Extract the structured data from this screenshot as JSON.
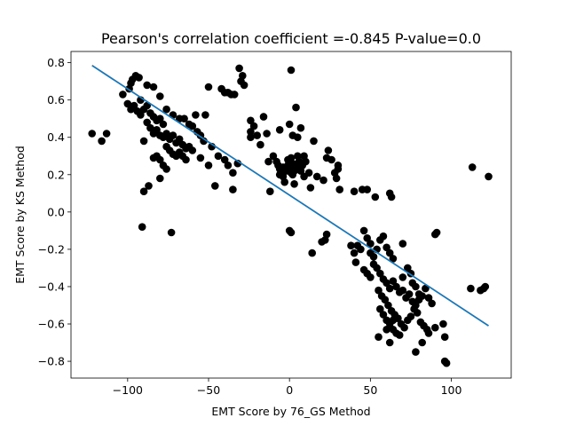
{
  "chart_data": {
    "type": "scatter",
    "title": "Pearson's correlation coefficient =-0.845 P-value=0.0",
    "xlabel": "EMT Score by 76_GS Method",
    "ylabel": "EMT Score by KS Method",
    "xlim": [
      -135,
      137
    ],
    "ylim": [
      -0.89,
      0.86
    ],
    "xticks": [
      -100,
      -50,
      0,
      50,
      100
    ],
    "xtick_labels": [
      "−100",
      "−50",
      "0",
      "50",
      "100"
    ],
    "yticks": [
      -0.8,
      -0.6,
      -0.4,
      -0.2,
      0.0,
      0.2,
      0.4,
      0.6,
      0.8
    ],
    "ytick_labels": [
      "−0.8",
      "−0.6",
      "−0.4",
      "−0.2",
      "0.0",
      "0.2",
      "0.4",
      "0.6",
      "0.8"
    ],
    "grid": false,
    "colors": {
      "points": "#000000",
      "fit_line": "#1f77b4"
    },
    "fit_line": {
      "x": [
        -122,
        123
      ],
      "y": [
        0.785,
        -0.61
      ]
    },
    "series": [
      {
        "points": [
          [
            -122,
            0.42
          ],
          [
            -116,
            0.38
          ],
          [
            -113,
            0.42
          ],
          [
            -103,
            0.63
          ],
          [
            -99,
            0.66
          ],
          [
            -98,
            0.69
          ],
          [
            -97,
            0.71
          ],
          [
            -95,
            0.73
          ],
          [
            -93,
            0.72
          ],
          [
            -92,
            0.6
          ],
          [
            -100,
            0.58
          ],
          [
            -98,
            0.55
          ],
          [
            -96,
            0.57
          ],
          [
            -94,
            0.54
          ],
          [
            -92,
            0.52
          ],
          [
            -90,
            0.55
          ],
          [
            -88,
            0.57
          ],
          [
            -86,
            0.53
          ],
          [
            -84,
            0.51
          ],
          [
            -82,
            0.49
          ],
          [
            -80,
            0.5
          ],
          [
            -78,
            0.47
          ],
          [
            -88,
            0.48
          ],
          [
            -86,
            0.45
          ],
          [
            -84,
            0.42
          ],
          [
            -82,
            0.44
          ],
          [
            -80,
            0.41
          ],
          [
            -78,
            0.4
          ],
          [
            -76,
            0.42
          ],
          [
            -74,
            0.39
          ],
          [
            -72,
            0.41
          ],
          [
            -70,
            0.37
          ],
          [
            -68,
            0.39
          ],
          [
            -66,
            0.36
          ],
          [
            -64,
            0.34
          ],
          [
            -62,
            0.35
          ],
          [
            -60,
            0.33
          ],
          [
            -76,
            0.35
          ],
          [
            -74,
            0.33
          ],
          [
            -72,
            0.31
          ],
          [
            -70,
            0.3
          ],
          [
            -68,
            0.32
          ],
          [
            -66,
            0.3
          ],
          [
            -64,
            0.28
          ],
          [
            -84,
            0.29
          ],
          [
            -82,
            0.3
          ],
          [
            -80,
            0.28
          ],
          [
            -78,
            0.25
          ],
          [
            -76,
            0.23
          ],
          [
            -88,
            0.68
          ],
          [
            -84,
            0.67
          ],
          [
            -80,
            0.62
          ],
          [
            -76,
            0.55
          ],
          [
            -72,
            0.52
          ],
          [
            -68,
            0.5
          ],
          [
            -65,
            0.5
          ],
          [
            -62,
            0.47
          ],
          [
            -60,
            0.46
          ],
          [
            -57,
            0.43
          ],
          [
            -55,
            0.41
          ],
          [
            -53,
            0.38
          ],
          [
            -90,
            0.38
          ],
          [
            -87,
            0.14
          ],
          [
            -90,
            0.11
          ],
          [
            -91,
            -0.08
          ],
          [
            -80,
            0.18
          ],
          [
            -73,
            -0.11
          ],
          [
            -55,
            0.29
          ],
          [
            -50,
            0.25
          ],
          [
            -48,
            0.35
          ],
          [
            -46,
            0.14
          ],
          [
            -44,
            0.3
          ],
          [
            -40,
            0.28
          ],
          [
            -38,
            0.25
          ],
          [
            -35,
            0.21
          ],
          [
            -35,
            0.12
          ],
          [
            -31,
            0.77
          ],
          [
            -29,
            0.73
          ],
          [
            -28,
            0.68
          ],
          [
            -50,
            0.67
          ],
          [
            -42,
            0.66
          ],
          [
            -40,
            0.64
          ],
          [
            -38,
            0.64
          ],
          [
            -36,
            0.63
          ],
          [
            -34,
            0.63
          ],
          [
            -30,
            0.7
          ],
          [
            -52,
            0.52
          ],
          [
            -58,
            0.52
          ],
          [
            -32,
            0.26
          ],
          [
            -24,
            0.49
          ],
          [
            -22,
            0.46
          ],
          [
            -20,
            0.41
          ],
          [
            -24,
            0.43
          ],
          [
            -24,
            0.4
          ],
          [
            -18,
            0.36
          ],
          [
            -16,
            0.51
          ],
          [
            -14,
            0.42
          ],
          [
            -13,
            0.27
          ],
          [
            -12,
            0.11
          ],
          [
            -10,
            0.3
          ],
          [
            -8,
            0.27
          ],
          [
            -6,
            0.2
          ],
          [
            -4,
            0.24
          ],
          [
            -3,
            0.16
          ],
          [
            -2,
            0.22
          ],
          [
            -1,
            0.28
          ],
          [
            0,
            0.24
          ],
          [
            1,
            0.29
          ],
          [
            2,
            0.26
          ],
          [
            3,
            0.22
          ],
          [
            4,
            0.24
          ],
          [
            5,
            0.3
          ],
          [
            6,
            0.27
          ],
          [
            7,
            0.22
          ],
          [
            8,
            0.25
          ],
          [
            9,
            0.19
          ],
          [
            -2,
            0.23
          ],
          [
            -1,
            0.25
          ],
          [
            0,
            0.27
          ],
          [
            1,
            0.21
          ],
          [
            2,
            0.2
          ],
          [
            3,
            0.15
          ],
          [
            -4,
            0.19
          ],
          [
            -5,
            0.21
          ],
          [
            -6,
            0.23
          ],
          [
            -7,
            0.25
          ],
          [
            -6,
            0.44
          ],
          [
            0,
            0.47
          ],
          [
            2,
            0.41
          ],
          [
            5,
            0.4
          ],
          [
            4,
            0.56
          ],
          [
            1,
            0.76
          ],
          [
            7,
            0.45
          ],
          [
            9,
            0.3
          ],
          [
            10,
            0.27
          ],
          [
            12,
            0.21
          ],
          [
            13,
            0.13
          ],
          [
            15,
            0.38
          ],
          [
            17,
            0.19
          ],
          [
            21,
            0.17
          ],
          [
            23,
            0.29
          ],
          [
            24,
            0.33
          ],
          [
            26,
            0.28
          ],
          [
            28,
            0.21
          ],
          [
            30,
            0.25
          ],
          [
            30,
            0.23
          ],
          [
            31,
            0.12
          ],
          [
            29,
            0.18
          ],
          [
            0,
            -0.1
          ],
          [
            1,
            -0.11
          ],
          [
            14,
            -0.22
          ],
          [
            20,
            -0.16
          ],
          [
            22,
            -0.15
          ],
          [
            23,
            -0.12
          ],
          [
            38,
            -0.18
          ],
          [
            40,
            -0.22
          ],
          [
            42,
            -0.18
          ],
          [
            41,
            -0.27
          ],
          [
            44,
            -0.2
          ],
          [
            46,
            -0.1
          ],
          [
            48,
            -0.14
          ],
          [
            50,
            -0.17
          ],
          [
            50,
            -0.22
          ],
          [
            52,
            -0.24
          ],
          [
            54,
            -0.2
          ],
          [
            56,
            -0.15
          ],
          [
            58,
            -0.13
          ],
          [
            60,
            -0.19
          ],
          [
            62,
            -0.22
          ],
          [
            64,
            -0.25
          ],
          [
            46,
            -0.31
          ],
          [
            48,
            -0.33
          ],
          [
            50,
            -0.35
          ],
          [
            52,
            -0.28
          ],
          [
            54,
            -0.3
          ],
          [
            56,
            -0.33
          ],
          [
            58,
            -0.36
          ],
          [
            60,
            -0.38
          ],
          [
            62,
            -0.41
          ],
          [
            64,
            -0.37
          ],
          [
            66,
            -0.4
          ],
          [
            68,
            -0.43
          ],
          [
            70,
            -0.42
          ],
          [
            72,
            -0.46
          ],
          [
            74,
            -0.44
          ],
          [
            76,
            -0.48
          ],
          [
            78,
            -0.5
          ],
          [
            80,
            -0.47
          ],
          [
            82,
            -0.45
          ],
          [
            84,
            -0.41
          ],
          [
            86,
            -0.46
          ],
          [
            88,
            -0.49
          ],
          [
            55,
            -0.42
          ],
          [
            57,
            -0.45
          ],
          [
            59,
            -0.47
          ],
          [
            61,
            -0.5
          ],
          [
            63,
            -0.53
          ],
          [
            65,
            -0.55
          ],
          [
            67,
            -0.57
          ],
          [
            69,
            -0.6
          ],
          [
            71,
            -0.62
          ],
          [
            73,
            -0.58
          ],
          [
            75,
            -0.56
          ],
          [
            77,
            -0.52
          ],
          [
            79,
            -0.54
          ],
          [
            81,
            -0.59
          ],
          [
            83,
            -0.61
          ],
          [
            85,
            -0.63
          ],
          [
            56,
            -0.52
          ],
          [
            58,
            -0.55
          ],
          [
            60,
            -0.58
          ],
          [
            62,
            -0.6
          ],
          [
            64,
            -0.63
          ],
          [
            66,
            -0.65
          ],
          [
            68,
            -0.66
          ],
          [
            55,
            -0.67
          ],
          [
            60,
            -0.63
          ],
          [
            62,
            -0.7
          ],
          [
            64,
            -0.58
          ],
          [
            78,
            -0.75
          ],
          [
            82,
            -0.7
          ],
          [
            86,
            -0.65
          ],
          [
            90,
            -0.62
          ],
          [
            95,
            -0.6
          ],
          [
            96,
            -0.67
          ],
          [
            96,
            -0.8
          ],
          [
            97,
            -0.81
          ],
          [
            70,
            -0.17
          ],
          [
            70,
            -0.35
          ],
          [
            73,
            -0.3
          ],
          [
            75,
            -0.33
          ],
          [
            76,
            -0.38
          ],
          [
            78,
            -0.4
          ],
          [
            80,
            -0.44
          ],
          [
            90,
            -0.12
          ],
          [
            91,
            -0.11
          ],
          [
            62,
            0.1
          ],
          [
            63,
            0.08
          ],
          [
            48,
            0.12
          ],
          [
            45,
            0.12
          ],
          [
            40,
            0.11
          ],
          [
            53,
            0.08
          ],
          [
            113,
            0.24
          ],
          [
            123,
            0.19
          ],
          [
            112,
            -0.41
          ],
          [
            118,
            -0.42
          ],
          [
            120,
            -0.41
          ],
          [
            121,
            -0.4
          ]
        ]
      }
    ]
  }
}
